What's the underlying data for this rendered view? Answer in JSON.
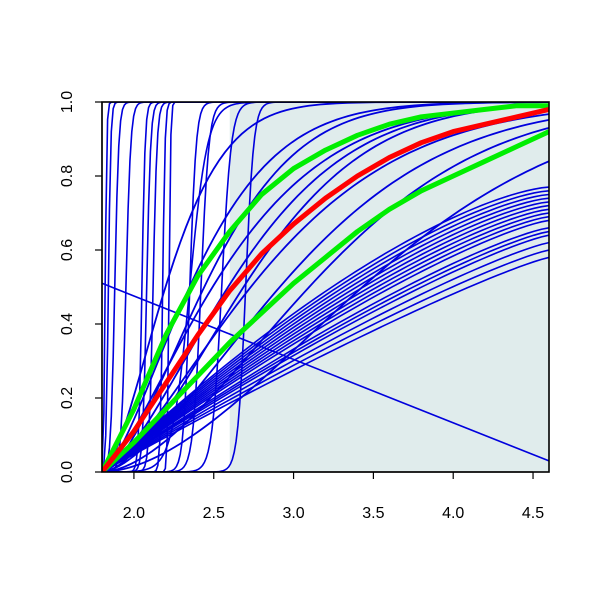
{
  "chart_data": {
    "type": "line",
    "title": "",
    "xlabel": "",
    "ylabel": "",
    "xlim": [
      1.8,
      4.6
    ],
    "ylim": [
      0.0,
      1.0
    ],
    "x_ticks": [
      "2.0",
      "2.5",
      "3.0",
      "3.5",
      "4.0",
      "4.5"
    ],
    "y_ticks": [
      "0.0",
      "0.2",
      "0.4",
      "0.6",
      "0.8",
      "1.0"
    ],
    "grid": false,
    "legend": "none",
    "shaded_region": {
      "x": [
        2.6,
        4.6
      ],
      "y": [
        0.0,
        1.0
      ],
      "color": "#e0ecec"
    },
    "colors": {
      "blue": "#0000dd",
      "red": "#ff0000",
      "green": "#00ee00",
      "axis": "#000000"
    },
    "descending_line": {
      "x": [
        1.8,
        4.6
      ],
      "y": [
        0.51,
        0.03
      ]
    },
    "highlight_series": [
      {
        "color": "red",
        "points": [
          [
            1.8,
            0.0
          ],
          [
            2.0,
            0.11
          ],
          [
            2.2,
            0.24
          ],
          [
            2.4,
            0.37
          ],
          [
            2.6,
            0.49
          ],
          [
            2.8,
            0.59
          ],
          [
            3.0,
            0.67
          ],
          [
            3.2,
            0.74
          ],
          [
            3.4,
            0.8
          ],
          [
            3.6,
            0.85
          ],
          [
            3.8,
            0.89
          ],
          [
            4.0,
            0.92
          ],
          [
            4.2,
            0.94
          ],
          [
            4.4,
            0.96
          ],
          [
            4.6,
            0.98
          ]
        ]
      },
      {
        "color": "green",
        "points": [
          [
            1.8,
            0.0
          ],
          [
            2.0,
            0.17
          ],
          [
            2.2,
            0.37
          ],
          [
            2.4,
            0.53
          ],
          [
            2.6,
            0.65
          ],
          [
            2.8,
            0.75
          ],
          [
            3.0,
            0.82
          ],
          [
            3.2,
            0.87
          ],
          [
            3.4,
            0.91
          ],
          [
            3.6,
            0.94
          ],
          [
            3.8,
            0.96
          ],
          [
            4.0,
            0.97
          ],
          [
            4.2,
            0.98
          ],
          [
            4.4,
            0.99
          ],
          [
            4.6,
            0.99
          ]
        ]
      },
      {
        "color": "green",
        "points": [
          [
            1.8,
            0.0
          ],
          [
            2.0,
            0.08
          ],
          [
            2.2,
            0.17
          ],
          [
            2.4,
            0.26
          ],
          [
            2.6,
            0.35
          ],
          [
            2.8,
            0.43
          ],
          [
            3.0,
            0.51
          ],
          [
            3.2,
            0.58
          ],
          [
            3.4,
            0.65
          ],
          [
            3.6,
            0.71
          ],
          [
            3.8,
            0.76
          ],
          [
            4.0,
            0.8
          ],
          [
            4.2,
            0.84
          ],
          [
            4.4,
            0.88
          ],
          [
            4.6,
            0.92
          ]
        ]
      }
    ],
    "blue_cdf_series": [
      {
        "offset": 1.8,
        "scale": 0.9,
        "shape": 0.4
      },
      {
        "offset": 1.8,
        "scale": 1.2,
        "shape": 0.45
      },
      {
        "offset": 1.8,
        "scale": 0.7,
        "shape": 0.5
      },
      {
        "offset": 1.8,
        "scale": 0.5,
        "shape": 0.6
      },
      {
        "offset": 1.8,
        "scale": 1.0,
        "shape": 0.55
      },
      {
        "offset": 1.8,
        "scale": 0.8,
        "shape": 0.65
      },
      {
        "offset": 1.8,
        "scale": 1.1,
        "shape": 0.7
      },
      {
        "offset": 1.8,
        "scale": 1.4,
        "shape": 0.6
      },
      {
        "offset": 1.8,
        "scale": 1.6,
        "shape": 0.75
      },
      {
        "offset": 1.8,
        "scale": 2.0,
        "shape": 0.8
      }
    ],
    "blue_linear_ends": [
      0.58,
      0.6,
      0.62,
      0.64,
      0.65,
      0.66,
      0.68,
      0.69,
      0.7,
      0.71,
      0.72,
      0.73,
      0.74,
      0.75,
      0.76,
      0.77
    ],
    "blue_steep_steps": [
      {
        "x": 1.82,
        "width": 0.02
      },
      {
        "x": 1.84,
        "width": 0.03
      },
      {
        "x": 1.88,
        "width": 0.05
      },
      {
        "x": 1.95,
        "width": 0.06
      },
      {
        "x": 2.05,
        "width": 0.04
      },
      {
        "x": 2.08,
        "width": 0.05
      },
      {
        "x": 2.12,
        "width": 0.05
      },
      {
        "x": 2.18,
        "width": 0.03
      },
      {
        "x": 2.22,
        "width": 0.02
      },
      {
        "x": 2.35,
        "width": 0.08
      },
      {
        "x": 2.42,
        "width": 0.1
      },
      {
        "x": 2.55,
        "width": 0.12
      },
      {
        "x": 2.7,
        "width": 0.1
      },
      {
        "x": 2.35,
        "width": 0.22
      }
    ]
  }
}
